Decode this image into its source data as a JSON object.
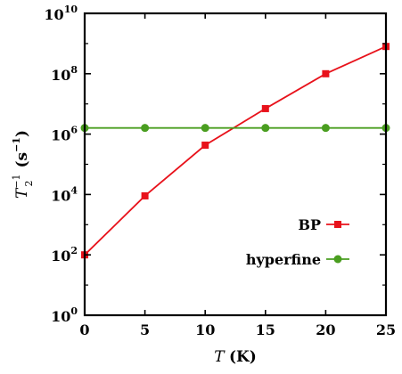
{
  "chart_data": {
    "type": "line",
    "title": "",
    "xlabel": "T (K)",
    "xlabel_parts": {
      "variable": "T",
      "unit": "(K)"
    },
    "ylabel": "T2^-1 (s^-1)",
    "ylabel_parts": {
      "base": "T",
      "subscript": "2",
      "superscript": "−1",
      "unit_base": "(s",
      "unit_superscript": "−1",
      "unit_close": ")"
    },
    "xlim": [
      0,
      25
    ],
    "ylim": [
      1,
      10000000000
    ],
    "yscale": "log",
    "grid": false,
    "legend_position": "right",
    "x_ticks": [
      0,
      5,
      10,
      15,
      20,
      25
    ],
    "x_tick_labels": [
      "0",
      "5",
      "10",
      "15",
      "20",
      "25"
    ],
    "y_ticks": [
      1,
      100,
      10000,
      1000000,
      100000000,
      10000000000
    ],
    "y_tick_labels": [
      {
        "base": "10",
        "exp": "0"
      },
      {
        "base": "10",
        "exp": "2"
      },
      {
        "base": "10",
        "exp": "4"
      },
      {
        "base": "10",
        "exp": "6"
      },
      {
        "base": "10",
        "exp": "8"
      },
      {
        "base": "10",
        "exp": "10"
      }
    ],
    "series": [
      {
        "name": "BP",
        "color": "#e8121b",
        "marker": "square",
        "x": [
          0,
          5,
          10,
          15,
          20,
          25
        ],
        "values": [
          100,
          9000,
          430000,
          7000000,
          100000000,
          800000000
        ]
      },
      {
        "name": "hyperfine",
        "color": "#4a9e20",
        "marker": "circle",
        "x": [
          0,
          5,
          10,
          15,
          20,
          25
        ],
        "values": [
          1600000,
          1600000,
          1600000,
          1600000,
          1600000,
          1600000
        ]
      }
    ]
  }
}
